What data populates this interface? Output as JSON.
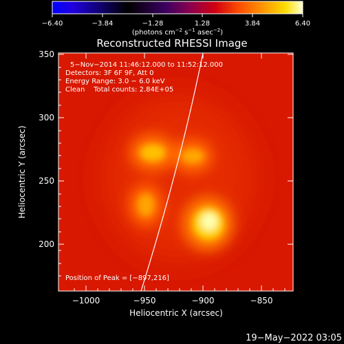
{
  "colorbar": {
    "ticks": [
      "−6.40",
      "−3.84",
      "−1.28",
      "1.28",
      "3.84",
      "6.40"
    ],
    "units_main": "(photons cm",
    "units_sup1": "−2",
    "units_mid1": " s",
    "units_sup2": "−1",
    "units_mid2": " asec",
    "units_sup3": "−2",
    "units_end": ")",
    "gradient_colors": [
      "#0000ff",
      "#3300cc",
      "#000000",
      "#400060",
      "#8a0060",
      "#d00010",
      "#ff5000",
      "#ff9a00",
      "#ffd000",
      "#ffff80",
      "#ffffff"
    ]
  },
  "plot": {
    "title": "Reconstructed RHESSI Image",
    "annotations": [
      "5−Nov−2014 11:46:12.000 to 11:52:12.000",
      "Detectors: 3F 6F 9F, Att 0",
      "Energy Range: 3.0 − 6.0 keV",
      "Clean    Total counts: 2.84E+05"
    ],
    "peak_text": "Position of Peak = [−897,216]",
    "xlabel": "Heliocentric X (arcsec)",
    "ylabel": "Heliocentric Y (arcsec)",
    "x_ticks": [
      "−1000",
      "−950",
      "−900",
      "−850"
    ],
    "y_ticks": [
      "200",
      "250",
      "300",
      "350"
    ],
    "background_color": "#dd1a00",
    "limb_color": "#ffffff"
  },
  "footer": {
    "date": "19−May−2022 03:05"
  }
}
